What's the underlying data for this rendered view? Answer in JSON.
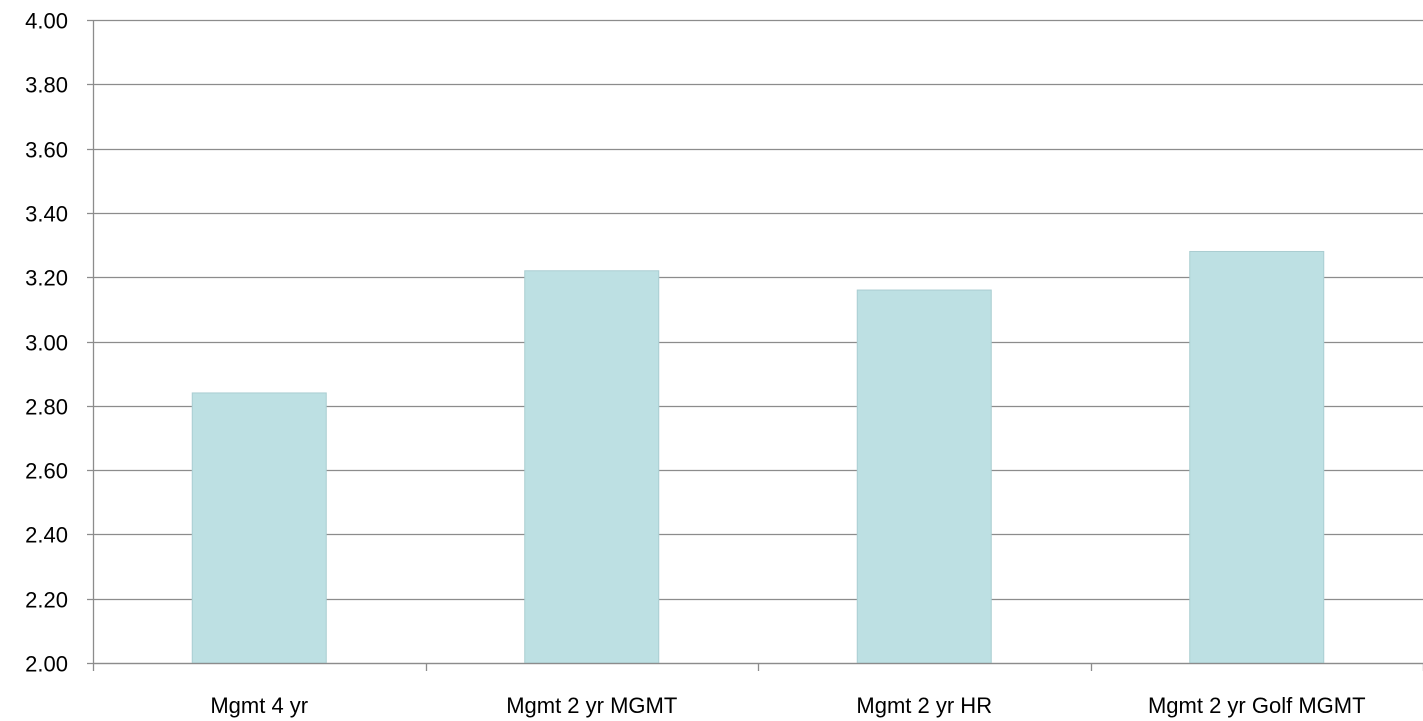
{
  "chart_data": {
    "type": "bar",
    "categories": [
      "Mgmt 4 yr",
      "Mgmt 2 yr MGMT",
      "Mgmt 2 yr HR",
      "Mgmt 2 yr Golf MGMT"
    ],
    "values": [
      2.84,
      3.22,
      3.16,
      3.28
    ],
    "y_tick_labels": [
      "2.00",
      "2.20",
      "2.40",
      "2.60",
      "2.80",
      "3.00",
      "3.20",
      "3.40",
      "3.60",
      "3.80",
      "4.00"
    ],
    "ylim": [
      2.0,
      4.0
    ],
    "grid": true,
    "legend": "none",
    "colors": {
      "bar_fill": "#bde0e3",
      "bar_stroke": "#a9cdd1",
      "grid": "#8c8c8c",
      "axis": "#8c8c8c"
    }
  }
}
